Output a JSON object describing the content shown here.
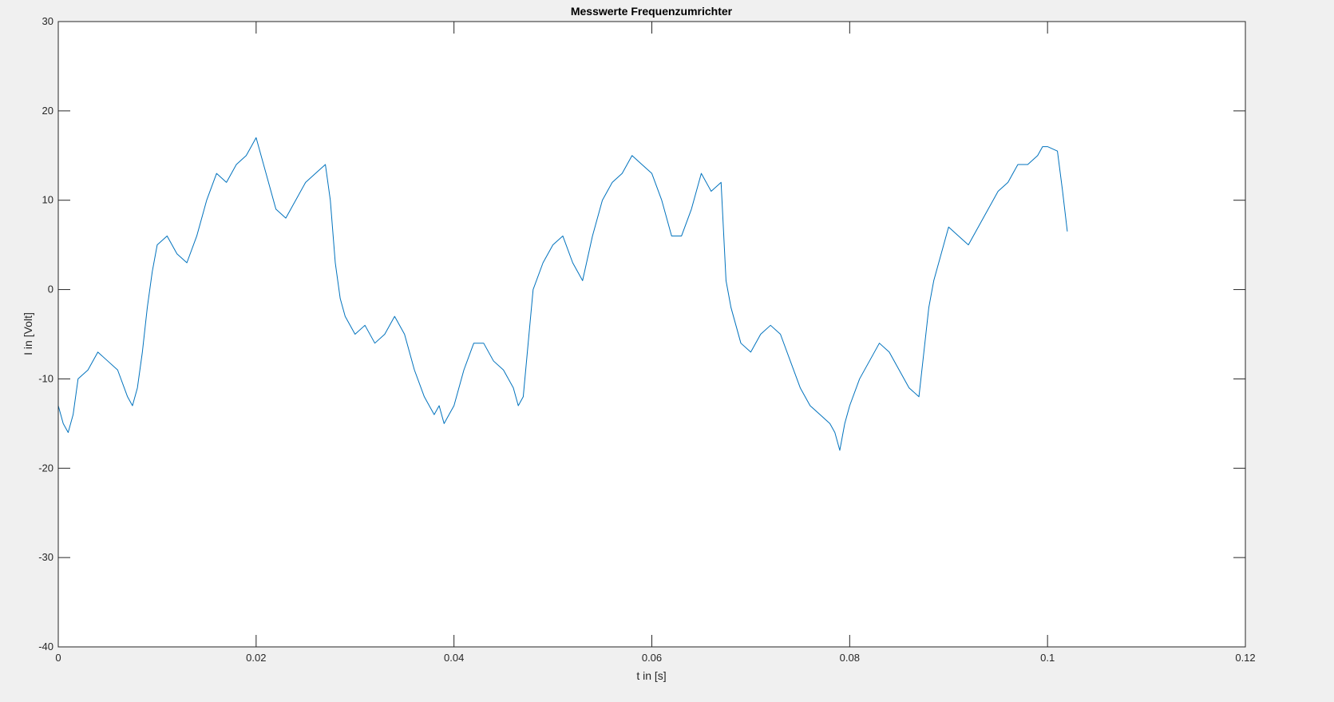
{
  "window": {
    "background": "#f0f0f0"
  },
  "chart_data": {
    "type": "line",
    "title": "Messwerte Frequenzumrichter",
    "xlabel": "t in [s]",
    "ylabel": "I in [Volt]",
    "xlim": [
      0,
      0.12
    ],
    "ylim": [
      -40,
      30
    ],
    "xticks": [
      0,
      0.02,
      0.04,
      0.06,
      0.08,
      0.1,
      0.12
    ],
    "xtick_labels": [
      "0",
      "0.02",
      "0.04",
      "0.06",
      "0.08",
      "0.1",
      "0.12"
    ],
    "yticks": [
      -40,
      -30,
      -20,
      -10,
      0,
      10,
      20,
      30
    ],
    "ytick_labels": [
      "-40",
      "-30",
      "-20",
      "-10",
      "0",
      "10",
      "20",
      "30"
    ],
    "grid": false,
    "legend": "none",
    "colors": {
      "series": "#0072bd",
      "axes": "#262626",
      "plot_bg": "#ffffff"
    },
    "series": [
      {
        "x": [
          0,
          0.0005,
          0.001,
          0.0015,
          0.002,
          0.003,
          0.004,
          0.005,
          0.006,
          0.007,
          0.0075,
          0.008,
          0.0085,
          0.009,
          0.0095,
          0.01,
          0.011,
          0.012,
          0.013,
          0.014,
          0.015,
          0.016,
          0.017,
          0.018,
          0.019,
          0.0195,
          0.02,
          0.021,
          0.022,
          0.023,
          0.024,
          0.025,
          0.026,
          0.027,
          0.0275,
          0.028,
          0.0285,
          0.029,
          0.03,
          0.031,
          0.032,
          0.033,
          0.034,
          0.035,
          0.036,
          0.037,
          0.038,
          0.0385,
          0.039,
          0.0395,
          0.04,
          0.041,
          0.042,
          0.043,
          0.044,
          0.045,
          0.046,
          0.0465,
          0.047,
          0.0475,
          0.048,
          0.049,
          0.05,
          0.051,
          0.052,
          0.053,
          0.054,
          0.055,
          0.056,
          0.057,
          0.058,
          0.059,
          0.06,
          0.061,
          0.062,
          0.063,
          0.064,
          0.065,
          0.066,
          0.067,
          0.0675,
          0.068,
          0.0685,
          0.069,
          0.07,
          0.071,
          0.072,
          0.073,
          0.074,
          0.075,
          0.076,
          0.077,
          0.078,
          0.0785,
          0.079,
          0.0795,
          0.08,
          0.081,
          0.082,
          0.083,
          0.084,
          0.085,
          0.086,
          0.087,
          0.0875,
          0.088,
          0.0885,
          0.089,
          0.09,
          0.091,
          0.092,
          0.093,
          0.094,
          0.095,
          0.096,
          0.097,
          0.098,
          0.099,
          0.0995,
          0.1,
          0.101,
          0.1015,
          0.102
        ],
        "y": [
          -13,
          -15,
          -16,
          -14,
          -10,
          -9,
          -7,
          -8,
          -9,
          -12,
          -13,
          -11,
          -7,
          -2,
          2,
          5,
          6,
          4,
          3,
          6,
          10,
          13,
          12,
          14,
          15,
          16,
          17,
          13,
          9,
          8,
          10,
          12,
          13,
          14,
          10,
          3,
          -1,
          -3,
          -5,
          -4,
          -6,
          -5,
          -3,
          -5,
          -9,
          -12,
          -14,
          -13,
          -15,
          -14,
          -13,
          -9,
          -6,
          -6,
          -8,
          -9,
          -11,
          -13,
          -12,
          -6,
          0,
          3,
          5,
          6,
          3,
          1,
          6,
          10,
          12,
          13,
          15,
          14,
          13,
          10,
          6,
          6,
          9,
          13,
          11,
          12,
          1,
          -2,
          -4,
          -6,
          -7,
          -5,
          -4,
          -5,
          -8,
          -11,
          -13,
          -14,
          -15,
          -16,
          -18,
          -15,
          -13,
          -10,
          -8,
          -6,
          -7,
          -9,
          -11,
          -12,
          -7,
          -2,
          1,
          3,
          7,
          6,
          5,
          7,
          9,
          11,
          12,
          14,
          14,
          15,
          16,
          16,
          15.5,
          11.2,
          6.5
        ]
      }
    ]
  }
}
